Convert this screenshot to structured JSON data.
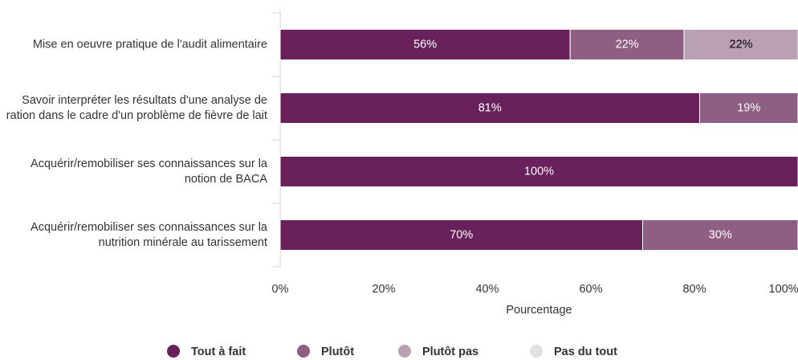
{
  "chart_data": {
    "type": "stacked-bar-horizontal",
    "categories": [
      "Mise en oeuvre pratique de l'audit alimentaire",
      "Savoir interpréter les résultats d'une analyse de ration dans le cadre d'un problème de fièvre de lait",
      "Acquérir/remobiliser ses connaissances sur la notion de BACA",
      "Acquérir/remobiliser ses connaissances sur la nutrition minérale au tarissement"
    ],
    "series": [
      {
        "name": "Tout à fait",
        "color": "#68215a",
        "values": [
          56,
          81,
          100,
          70
        ],
        "value_labels": [
          "56%",
          "81%",
          "100%",
          "70%"
        ]
      },
      {
        "name": "Plutôt",
        "color": "#8e5e83",
        "values": [
          22,
          19,
          0,
          30
        ],
        "value_labels": [
          "22%",
          "19%",
          null,
          "30%"
        ]
      },
      {
        "name": "Plutôt pas",
        "color": "#b9a0b3",
        "values": [
          22,
          0,
          0,
          0
        ],
        "value_labels": [
          "22%",
          null,
          null,
          null
        ]
      },
      {
        "name": "Pas du tout",
        "color": "#e0e0e0",
        "values": [
          0,
          0,
          0,
          0
        ]
      }
    ],
    "xlabel": "Pourcentage",
    "xlim": [
      0,
      100
    ],
    "xticks": [
      {
        "value": 0,
        "label": "0%"
      },
      {
        "value": 20,
        "label": "20%"
      },
      {
        "value": 40,
        "label": "40%"
      },
      {
        "value": 60,
        "label": "60%"
      },
      {
        "value": 80,
        "label": "80%"
      },
      {
        "value": 100,
        "label": "100%"
      }
    ],
    "legend": "bottom"
  }
}
